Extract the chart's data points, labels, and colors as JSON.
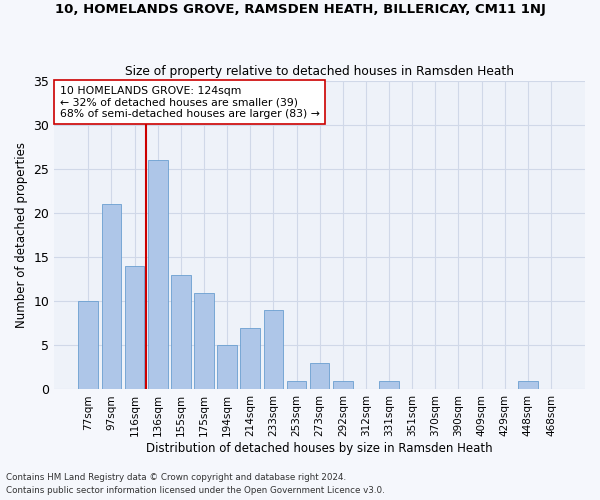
{
  "title1": "10, HOMELANDS GROVE, RAMSDEN HEATH, BILLERICAY, CM11 1NJ",
  "title2": "Size of property relative to detached houses in Ramsden Heath",
  "xlabel": "Distribution of detached houses by size in Ramsden Heath",
  "ylabel": "Number of detached properties",
  "categories": [
    "77sqm",
    "97sqm",
    "116sqm",
    "136sqm",
    "155sqm",
    "175sqm",
    "194sqm",
    "214sqm",
    "233sqm",
    "253sqm",
    "273sqm",
    "292sqm",
    "312sqm",
    "331sqm",
    "351sqm",
    "370sqm",
    "390sqm",
    "409sqm",
    "429sqm",
    "448sqm",
    "468sqm"
  ],
  "values": [
    10,
    21,
    14,
    26,
    13,
    11,
    5,
    7,
    9,
    1,
    3,
    1,
    0,
    1,
    0,
    0,
    0,
    0,
    0,
    1,
    0
  ],
  "bar_color": "#aec6e8",
  "bar_edge_color": "#6a9fd0",
  "vline_x_idx": 2,
  "vline_color": "#cc0000",
  "annotation_text": "10 HOMELANDS GROVE: 124sqm\n← 32% of detached houses are smaller (39)\n68% of semi-detached houses are larger (83) →",
  "annotation_box_color": "#ffffff",
  "annotation_box_edge": "#cc0000",
  "ylim": [
    0,
    35
  ],
  "yticks": [
    0,
    5,
    10,
    15,
    20,
    25,
    30,
    35
  ],
  "footnote1": "Contains HM Land Registry data © Crown copyright and database right 2024.",
  "footnote2": "Contains public sector information licensed under the Open Government Licence v3.0.",
  "bg_color": "#eef2f9",
  "grid_color": "#d0d8e8",
  "fig_bg_color": "#f5f7fc"
}
